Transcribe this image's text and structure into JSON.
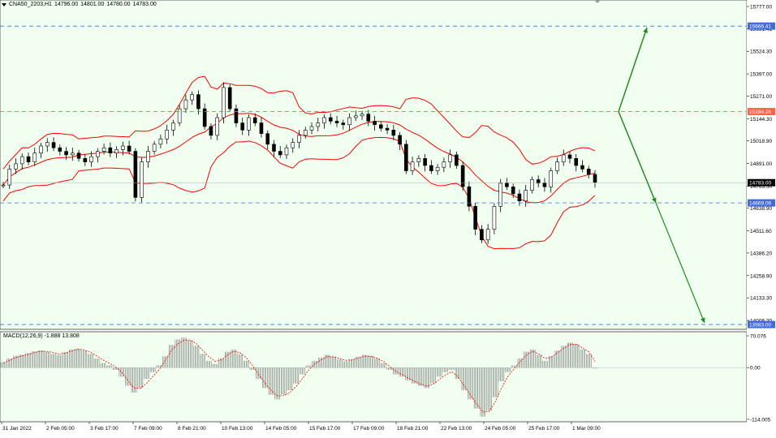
{
  "symbol": {
    "name": "CNA50_2203,H1",
    "ohlc": [
      "14796.00",
      "14801.00",
      "14780.00",
      "14783.00"
    ]
  },
  "macd_label": "MACD(12,26,9) -1.888 13.808",
  "colors": {
    "background": "#F0FFF0",
    "candle": "#000000",
    "bands": "#FF0000",
    "level_blue": "#4169E1",
    "level_red": "#FF6347",
    "arrow": "#228B22",
    "macd_hist": "#808080",
    "macd_signal": "#FF0000"
  },
  "chart_data": {
    "type": "candlestick",
    "y_ticks": [
      "15777.00",
      "15651.41",
      "15524.30",
      "15397.00",
      "15271.00",
      "15144.30",
      "15018.90",
      "14891.00",
      "14763.50",
      "14638.90",
      "14511.60",
      "14386.20",
      "14258.90",
      "14133.30",
      "14006.20"
    ],
    "x_ticks": [
      "31 Jan 2022",
      "2 Feb 05:00",
      "3 Feb 17:00",
      "7 Feb 09:00",
      "8 Feb 21:00",
      "10 Feb 13:00",
      "14 Feb 05:00",
      "15 Feb 17:00",
      "17 Feb 09:00",
      "18 Feb 21:00",
      "22 Feb 13:00",
      "24 Feb 05:00",
      "25 Feb 17:00",
      "1 Mar 09:00"
    ],
    "levels": [
      {
        "label": "15666.41",
        "value": 15666.41,
        "color": "blue"
      },
      {
        "label": "15184.26",
        "value": 15184.26,
        "color": "red"
      },
      {
        "label": "14669.06",
        "value": 14669.06,
        "color": "blue"
      },
      {
        "label": "13983.00",
        "value": 13983.0,
        "color": "blue"
      }
    ],
    "current_price": {
      "label": "14783.00",
      "value": 14783.0
    },
    "macd_ticks": [
      "70.076",
      "0.00",
      "-114.005"
    ],
    "macd_range": [
      -114.005,
      70.076
    ],
    "price_range": [
      13960,
      15800
    ],
    "close": [
      14770,
      14860,
      14890,
      14930,
      14900,
      14950,
      14990,
      15010,
      14980,
      14960,
      14940,
      14950,
      14920,
      14900,
      14930,
      14960,
      14980,
      14950,
      14970,
      14990,
      14960,
      14700,
      14900,
      14960,
      15000,
      15030,
      15080,
      15120,
      15200,
      15250,
      15280,
      15200,
      15100,
      15050,
      15150,
      15320,
      15200,
      15120,
      15080,
      15150,
      15120,
      15060,
      15000,
      14960,
      14940,
      14980,
      15010,
      15050,
      15080,
      15100,
      15120,
      15150,
      15130,
      15120,
      15110,
      15150,
      15160,
      15170,
      15130,
      15110,
      15090,
      15080,
      15050,
      15000,
      14850,
      14900,
      14920,
      14880,
      14850,
      14870,
      14900,
      14940,
      14880,
      14760,
      14650,
      14520,
      14460,
      14520,
      14650,
      14780,
      14760,
      14720,
      14680,
      14740,
      14800,
      14780,
      14760,
      14850,
      14900,
      14940,
      14920,
      14880,
      14860,
      14830,
      14783
    ],
    "macd_hist": [
      12,
      20,
      26,
      28,
      32,
      36,
      38,
      35,
      30,
      28,
      34,
      40,
      42,
      38,
      30,
      20,
      10,
      5,
      -5,
      -20,
      -40,
      -55,
      -45,
      -25,
      -10,
      5,
      25,
      50,
      62,
      66,
      60,
      48,
      30,
      15,
      8,
      20,
      35,
      40,
      30,
      15,
      -5,
      -25,
      -45,
      -60,
      -70,
      -60,
      -50,
      -35,
      -15,
      5,
      15,
      22,
      28,
      24,
      18,
      14,
      18,
      24,
      28,
      26,
      20,
      10,
      -5,
      -15,
      -20,
      -28,
      -35,
      -40,
      -45,
      -35,
      -20,
      -10,
      -5,
      -25,
      -50,
      -70,
      -90,
      -108,
      -95,
      -65,
      -30,
      -10,
      5,
      20,
      35,
      40,
      28,
      15,
      25,
      38,
      48,
      55,
      52,
      40,
      30,
      -1.888
    ],
    "macd_signal": [
      10,
      16,
      22,
      26,
      29,
      33,
      36,
      36,
      33,
      30,
      32,
      37,
      40,
      39,
      34,
      26,
      17,
      10,
      2,
      -10,
      -28,
      -45,
      -46,
      -35,
      -20,
      -5,
      15,
      38,
      52,
      60,
      61,
      53,
      38,
      24,
      14,
      17,
      28,
      36,
      33,
      22,
      5,
      -15,
      -34,
      -50,
      -62,
      -62,
      -55,
      -42,
      -25,
      -6,
      8,
      17,
      24,
      24,
      20,
      16,
      17,
      21,
      25,
      25,
      21,
      14,
      3,
      -8,
      -15,
      -23,
      -30,
      -36,
      -41,
      -37,
      -26,
      -16,
      -9,
      -20,
      -40,
      -60,
      -80,
      -98,
      -97,
      -75,
      -45,
      -20,
      -3,
      13,
      28,
      36,
      30,
      20,
      23,
      33,
      43,
      51,
      51,
      43,
      35,
      13.808
    ]
  }
}
